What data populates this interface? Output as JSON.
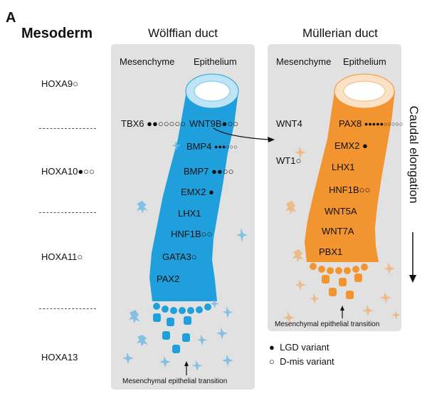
{
  "figure": {
    "panel_label": "A",
    "mesoderm_label": "Mesoderm",
    "wolffian": {
      "title": "Wölffian duct",
      "mesenchyme_label": "Mesenchyme",
      "epithelium_label": "Epithelium",
      "mesenchyme_genes": [
        {
          "name": "TBX6",
          "variants": "●●○○○○○"
        }
      ],
      "epithelium_genes": [
        {
          "name": "WNT9B",
          "variants": "●○○"
        },
        {
          "name": "BMP4",
          "variants": "●●●○○○"
        },
        {
          "name": "BMP7",
          "variants": "●●○○"
        },
        {
          "name": "EMX2",
          "variants": "●"
        },
        {
          "name": "LHX1",
          "variants": ""
        },
        {
          "name": "HNF1B",
          "variants": "○○"
        },
        {
          "name": "GATA3",
          "variants": "○"
        },
        {
          "name": "PAX2",
          "variants": ""
        }
      ],
      "transition_label": "Mesenchymal epithelial transition"
    },
    "mullerian": {
      "title": "Müllerian duct",
      "mesenchyme_label": "Mesenchyme",
      "epithelium_label": "Epithelium",
      "mesenchyme_genes": [
        {
          "name": "WNT4",
          "variants": ""
        },
        {
          "name": "WT1",
          "variants": "○"
        }
      ],
      "epithelium_genes": [
        {
          "name": "PAX8",
          "variants": "●●●●●○○○○○"
        },
        {
          "name": "EMX2",
          "variants": "●"
        },
        {
          "name": "LHX1",
          "variants": ""
        },
        {
          "name": "HNF1B",
          "variants": "○○"
        },
        {
          "name": "WNT5A",
          "variants": ""
        },
        {
          "name": "WNT7A",
          "variants": ""
        },
        {
          "name": "PBX1",
          "variants": ""
        }
      ],
      "transition_label": "Mesenchymal epithelial transition"
    },
    "hox_genes": [
      {
        "name": "HOXA9",
        "variants": "○"
      },
      {
        "name": "HOXA10",
        "variants": "●○○"
      },
      {
        "name": "HOXA11",
        "variants": "○"
      },
      {
        "name": "HOXA13",
        "variants": ""
      }
    ],
    "caudal_label": "Caudal elongation",
    "legend": [
      {
        "symbol": "●",
        "label": "LGD variant"
      },
      {
        "symbol": "○",
        "label": "D-mis variant"
      }
    ],
    "colors": {
      "wolffian_blue": "#1fa0dc",
      "wolffian_light": "#bfe4f6",
      "mullerian_orange": "#f29430",
      "mullerian_light": "#fbe1c5",
      "panel_gray": "#e1e1e1"
    }
  }
}
